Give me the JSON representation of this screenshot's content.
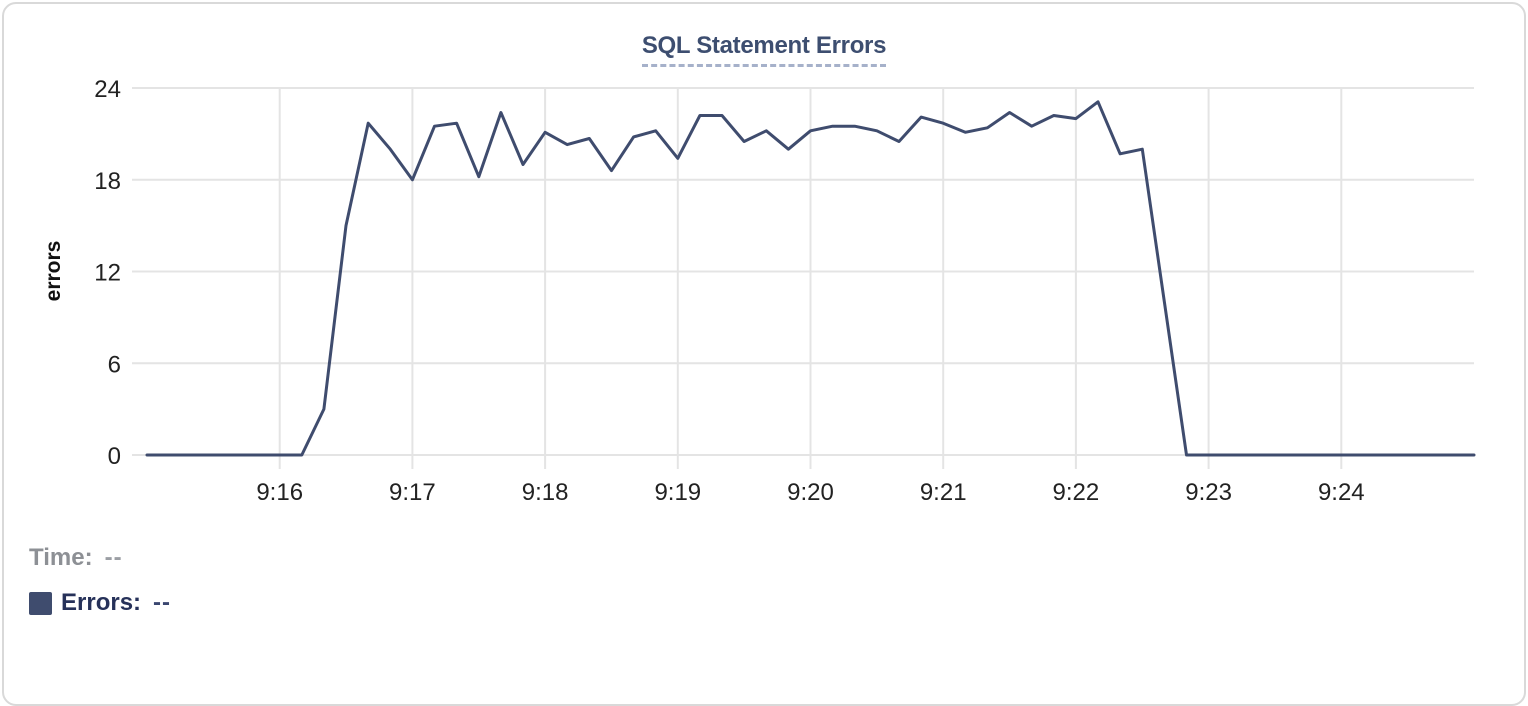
{
  "chart_data": {
    "type": "line",
    "title": "SQL Statement Errors",
    "ylabel": "errors",
    "xlabel": "",
    "grid": true,
    "legend_position": "bottom-left",
    "ylim": [
      0,
      24
    ],
    "y_ticks": [
      0,
      6,
      12,
      18,
      24
    ],
    "x_ticks": [
      "9:16",
      "9:17",
      "9:18",
      "9:19",
      "9:20",
      "9:21",
      "9:22",
      "9:23",
      "9:24"
    ],
    "x_range": [
      "9:15:00",
      "9:25:00"
    ],
    "series": [
      {
        "name": "Errors",
        "color": "#3f4c6e",
        "times": [
          "9:15:00",
          "9:15:10",
          "9:15:20",
          "9:15:30",
          "9:15:40",
          "9:15:50",
          "9:16:00",
          "9:16:10",
          "9:16:20",
          "9:16:30",
          "9:16:40",
          "9:16:50",
          "9:17:00",
          "9:17:10",
          "9:17:20",
          "9:17:30",
          "9:17:40",
          "9:17:50",
          "9:18:00",
          "9:18:10",
          "9:18:20",
          "9:18:30",
          "9:18:40",
          "9:18:50",
          "9:19:00",
          "9:19:10",
          "9:19:20",
          "9:19:30",
          "9:19:40",
          "9:19:50",
          "9:20:00",
          "9:20:10",
          "9:20:20",
          "9:20:30",
          "9:20:40",
          "9:20:50",
          "9:21:00",
          "9:21:10",
          "9:21:20",
          "9:21:30",
          "9:21:40",
          "9:21:50",
          "9:22:00",
          "9:22:10",
          "9:22:20",
          "9:22:30",
          "9:22:40",
          "9:22:50",
          "9:23:00",
          "9:23:10",
          "9:23:20",
          "9:23:30",
          "9:23:40",
          "9:23:50",
          "9:24:00",
          "9:24:10",
          "9:24:20",
          "9:24:30",
          "9:24:40",
          "9:24:50",
          "9:25:00"
        ],
        "values": [
          0,
          0,
          0,
          0,
          0,
          0,
          0,
          0,
          3,
          15,
          21.7,
          20,
          18,
          21.5,
          21.7,
          18.2,
          22.4,
          19,
          21.1,
          20.3,
          20.7,
          18.6,
          20.8,
          21.2,
          19.4,
          22.2,
          22.2,
          20.5,
          21.2,
          20,
          21.2,
          21.5,
          21.5,
          21.2,
          20.5,
          22.1,
          21.7,
          21.1,
          21.4,
          22.4,
          21.5,
          22.2,
          22,
          23.1,
          19.7,
          20,
          10,
          0,
          0,
          0,
          0,
          0,
          0,
          0,
          0,
          0,
          0,
          0,
          0,
          0,
          0
        ]
      }
    ]
  },
  "tooltip": {
    "time_label": "Time:",
    "time_value": "--",
    "series_label": "Errors:",
    "series_value": "--",
    "swatch_color": "#3f4c6e"
  },
  "colors": {
    "accent_navy": "#3f4c6e",
    "title_navy": "#3d4e70",
    "grid_gray": "#e4e4e4",
    "card_border": "#d9d9d9",
    "muted_gray": "#8d9095"
  }
}
